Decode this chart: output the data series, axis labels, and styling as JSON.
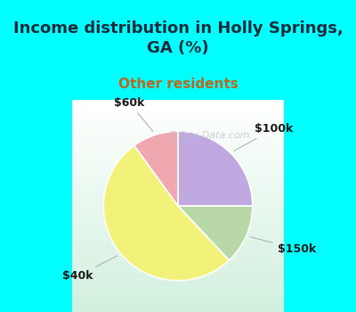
{
  "title": "Income distribution in Holly Springs,\nGA (%)",
  "subtitle": "Other residents",
  "slices": [
    {
      "label": "$40k",
      "value": 52,
      "color": "#f2f27a"
    },
    {
      "label": "$60k",
      "value": 10,
      "color": "#f0a8b0"
    },
    {
      "label": "$100k",
      "value": 25,
      "color": "#c0a8e0"
    },
    {
      "label": "$150k",
      "value": 13,
      "color": "#b8d8a8"
    }
  ],
  "start_angle": 90,
  "background_color": "#00ffff",
  "chart_bg_color": "#dff0e8",
  "title_color": "#1a2a3a",
  "subtitle_color": "#b86820",
  "watermark": "City-Data.com",
  "label_color": "#1a1a1a",
  "title_fontsize": 13,
  "subtitle_fontsize": 11,
  "label_fontsize": 9
}
